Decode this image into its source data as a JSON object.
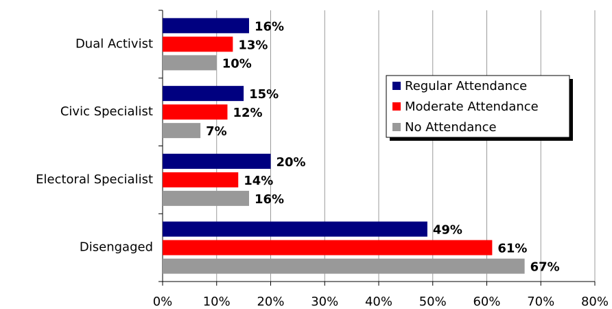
{
  "chart_data": {
    "type": "bar",
    "orientation": "horizontal",
    "categories": [
      "Dual  Activist",
      "Civic Specialist",
      "Electoral Specialist",
      "Disengaged"
    ],
    "series": [
      {
        "name": "Regular Attendance",
        "color": "#000080",
        "values": [
          16,
          15,
          20,
          49
        ],
        "value_labels": [
          "16%",
          "15%",
          "20%",
          "49%"
        ]
      },
      {
        "name": "Moderate Attendance",
        "color": "#ff0000",
        "values": [
          13,
          12,
          14,
          61
        ],
        "value_labels": [
          "13%",
          "12%",
          "14%",
          "61%"
        ]
      },
      {
        "name": "No Attendance",
        "color": "#999999",
        "values": [
          10,
          7,
          16,
          67
        ],
        "value_labels": [
          "10%",
          "7%",
          "16%",
          "67%"
        ]
      }
    ],
    "xlim": [
      0,
      80
    ],
    "xticks": [
      {
        "value": 0,
        "label": "0%"
      },
      {
        "value": 10,
        "label": "10%"
      },
      {
        "value": 20,
        "label": "20%"
      },
      {
        "value": 30,
        "label": "30%"
      },
      {
        "value": 40,
        "label": "40%"
      },
      {
        "value": 50,
        "label": "50%"
      },
      {
        "value": 60,
        "label": "60%"
      },
      {
        "value": 70,
        "label": "70%"
      },
      {
        "value": 80,
        "label": "80%"
      }
    ],
    "grid": true,
    "legend": "right"
  }
}
